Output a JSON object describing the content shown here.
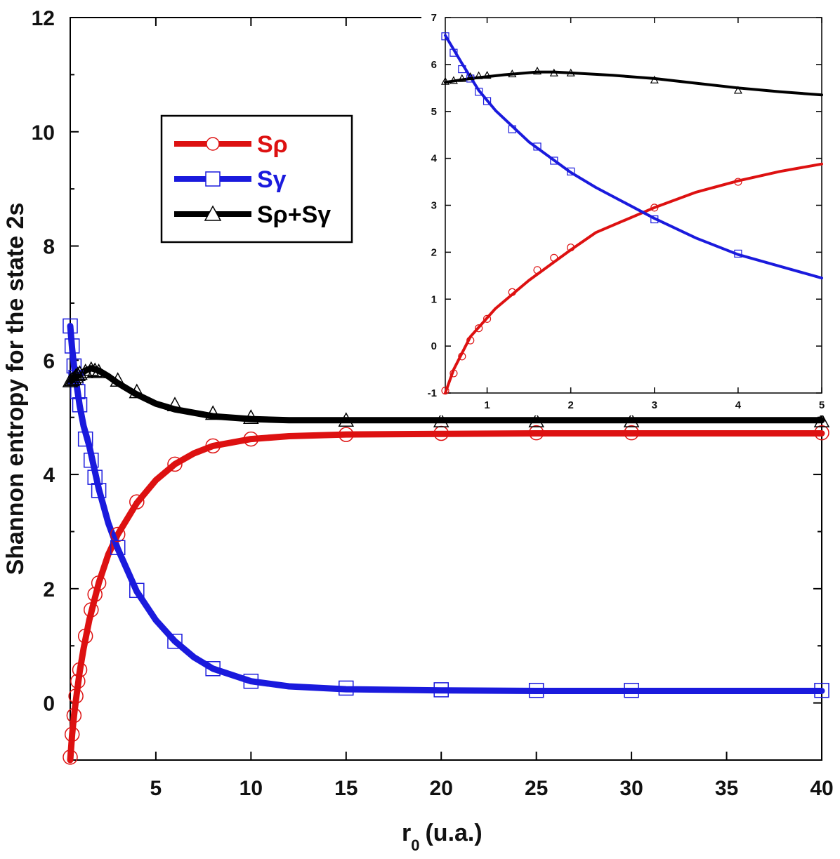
{
  "chart_data": [
    {
      "type": "line",
      "role": "main",
      "xlabel": "r",
      "xlabel_sub": "0",
      "xlabel_unit": "(u.a.)",
      "ylabel": "Shannon entropy for the state 2s",
      "xlim": [
        0.5,
        40
      ],
      "ylim": [
        -1,
        12
      ],
      "xticks": [
        5,
        10,
        15,
        20,
        25,
        30,
        35,
        40
      ],
      "yticks": [
        0,
        2,
        4,
        6,
        8,
        10,
        12
      ],
      "legend_position": "upper-left",
      "series": [
        {
          "name": "Sρ",
          "color": "#dd1111",
          "marker": "circle",
          "line_x": [
            0.5,
            0.6,
            0.7,
            0.8,
            1.0,
            1.2,
            1.5,
            2.0,
            2.5,
            3,
            4,
            5,
            6,
            7,
            8,
            10,
            12,
            15,
            20,
            25,
            30,
            40
          ],
          "line_y": [
            -1.0,
            -0.55,
            -0.22,
            0.05,
            0.55,
            0.95,
            1.45,
            2.1,
            2.6,
            2.95,
            3.5,
            3.9,
            4.18,
            4.37,
            4.5,
            4.62,
            4.67,
            4.7,
            4.71,
            4.72,
            4.72,
            4.72
          ],
          "marker_x": [
            0.5,
            0.6,
            0.7,
            0.8,
            0.9,
            1.0,
            1.3,
            1.6,
            1.8,
            2,
            3,
            4,
            6,
            8,
            10,
            15,
            20,
            25,
            30,
            40
          ],
          "marker_y": [
            -0.95,
            -0.55,
            -0.22,
            0.12,
            0.38,
            0.58,
            1.17,
            1.63,
            1.9,
            2.1,
            2.95,
            3.52,
            4.18,
            4.5,
            4.62,
            4.7,
            4.72,
            4.73,
            4.73,
            4.73
          ]
        },
        {
          "name": "Sγ",
          "color": "#1a1add",
          "marker": "square",
          "line_x": [
            0.5,
            0.6,
            0.7,
            0.8,
            1.0,
            1.2,
            1.5,
            2.0,
            2.5,
            3,
            4,
            5,
            6,
            7,
            8,
            10,
            12,
            15,
            20,
            25,
            30,
            40
          ],
          "line_y": [
            6.6,
            6.2,
            5.9,
            5.65,
            5.2,
            4.85,
            4.5,
            3.75,
            3.15,
            2.7,
            1.95,
            1.45,
            1.08,
            0.8,
            0.6,
            0.38,
            0.29,
            0.24,
            0.22,
            0.21,
            0.21,
            0.21
          ],
          "marker_x": [
            0.5,
            0.6,
            0.7,
            0.8,
            0.9,
            1.0,
            1.3,
            1.6,
            1.8,
            2,
            3,
            4,
            6,
            8,
            10,
            15,
            20,
            25,
            30,
            40
          ],
          "marker_y": [
            6.6,
            6.25,
            5.9,
            5.7,
            5.45,
            5.22,
            4.62,
            4.25,
            3.95,
            3.72,
            2.72,
            1.97,
            1.08,
            0.6,
            0.38,
            0.26,
            0.23,
            0.22,
            0.22,
            0.22
          ]
        },
        {
          "name": "Sρ+Sγ",
          "color": "#000000",
          "marker": "triangle",
          "line_x": [
            0.5,
            0.7,
            1.0,
            1.3,
            1.6,
            2.0,
            2.5,
            3,
            4,
            5,
            6,
            8,
            10,
            12,
            15,
            20,
            25,
            30,
            40
          ],
          "line_y": [
            5.62,
            5.68,
            5.75,
            5.82,
            5.86,
            5.82,
            5.72,
            5.6,
            5.4,
            5.24,
            5.14,
            5.02,
            4.97,
            4.95,
            4.95,
            4.95,
            4.95,
            4.95,
            4.95
          ],
          "marker_x": [
            0.5,
            0.6,
            0.7,
            0.8,
            0.9,
            1.0,
            1.3,
            1.6,
            1.8,
            2,
            3,
            4,
            6,
            8,
            10,
            15,
            20,
            25,
            30,
            40
          ],
          "marker_y": [
            5.64,
            5.66,
            5.68,
            5.72,
            5.75,
            5.77,
            5.8,
            5.84,
            5.82,
            5.8,
            5.65,
            5.45,
            5.22,
            5.07,
            5.0,
            4.95,
            4.94,
            4.94,
            4.94,
            4.94
          ]
        }
      ]
    },
    {
      "type": "line",
      "role": "inset",
      "xlim": [
        0.5,
        5
      ],
      "ylim": [
        -1,
        7
      ],
      "xticks": [
        1,
        2,
        3,
        4,
        5
      ],
      "yticks": [
        -1,
        0,
        1,
        2,
        3,
        4,
        5,
        6,
        7
      ],
      "series": [
        {
          "name": "Sρ",
          "color": "#dd1111",
          "marker": "circle",
          "line_x": [
            0.5,
            0.6,
            0.8,
            1.1,
            1.5,
            2.0,
            2.3,
            3.0,
            3.5,
            4.0,
            4.5,
            5.0
          ],
          "line_y": [
            -1.0,
            -0.5,
            0.2,
            0.8,
            1.4,
            2.05,
            2.42,
            2.95,
            3.28,
            3.52,
            3.72,
            3.88
          ],
          "marker_x": [
            0.5,
            0.6,
            0.7,
            0.8,
            0.9,
            1.0,
            1.3,
            1.6,
            1.8,
            2,
            3,
            4
          ],
          "marker_y": [
            -0.95,
            -0.58,
            -0.22,
            0.12,
            0.38,
            0.58,
            1.15,
            1.62,
            1.88,
            2.1,
            2.95,
            3.5
          ]
        },
        {
          "name": "Sγ",
          "color": "#1a1add",
          "marker": "square",
          "line_x": [
            0.5,
            0.7,
            0.9,
            1.1,
            1.5,
            2.0,
            2.3,
            3.0,
            3.5,
            4.0,
            4.5,
            5.0
          ],
          "line_y": [
            6.62,
            6.02,
            5.45,
            5.02,
            4.35,
            3.7,
            3.38,
            2.72,
            2.3,
            1.95,
            1.7,
            1.45
          ],
          "marker_x": [
            0.5,
            0.6,
            0.7,
            0.8,
            0.9,
            1.0,
            1.3,
            1.6,
            1.8,
            2,
            3,
            4
          ],
          "marker_y": [
            6.6,
            6.25,
            5.9,
            5.7,
            5.42,
            5.22,
            4.62,
            4.25,
            3.95,
            3.72,
            2.7,
            1.97
          ]
        },
        {
          "name": "Sρ+Sγ",
          "color": "#000000",
          "marker": "triangle",
          "line_x": [
            0.5,
            0.8,
            1.2,
            1.6,
            1.8,
            2.0,
            2.5,
            3.0,
            3.5,
            4.0,
            4.5,
            5.0
          ],
          "line_y": [
            5.62,
            5.7,
            5.78,
            5.84,
            5.84,
            5.82,
            5.77,
            5.7,
            5.6,
            5.5,
            5.42,
            5.35
          ],
          "marker_x": [
            0.5,
            0.6,
            0.7,
            0.8,
            0.9,
            1.0,
            1.3,
            1.6,
            1.8,
            2,
            3,
            4
          ],
          "marker_y": [
            5.64,
            5.66,
            5.7,
            5.74,
            5.76,
            5.77,
            5.8,
            5.86,
            5.82,
            5.82,
            5.67,
            5.45
          ]
        }
      ]
    }
  ]
}
